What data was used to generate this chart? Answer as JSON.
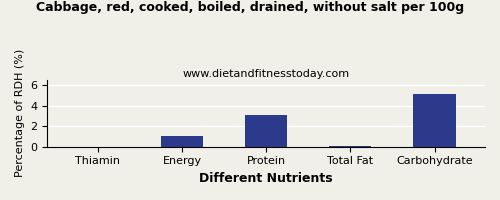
{
  "title": "Cabbage, red, cooked, boiled, drained, without salt per 100g",
  "subtitle": "www.dietandfitnesstoday.com",
  "xlabel": "Different Nutrients",
  "ylabel": "Percentage of RDH (%)",
  "categories": [
    "Thiamin",
    "Energy",
    "Protein",
    "Total Fat",
    "Carbohydrate"
  ],
  "values": [
    0.0,
    1.05,
    3.08,
    0.03,
    5.08
  ],
  "bar_color": "#2B3A8B",
  "ylim": [
    0,
    6.5
  ],
  "yticks": [
    0,
    2,
    4,
    6
  ],
  "background_color": "#f0f0e8",
  "title_fontsize": 9,
  "subtitle_fontsize": 8,
  "xlabel_fontsize": 9,
  "ylabel_fontsize": 8,
  "tick_fontsize": 8,
  "bar_width": 0.5
}
